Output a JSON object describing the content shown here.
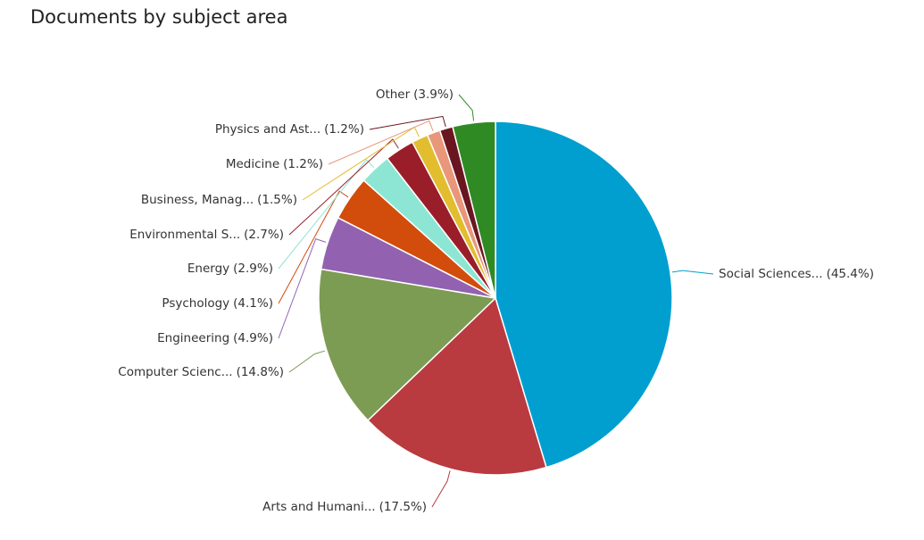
{
  "chart_data": {
    "type": "pie",
    "title": "Documents by subject area",
    "categories": [
      "Social Sciences...",
      "Arts and Humani...",
      "Computer Scienc...",
      "Engineering",
      "Psychology",
      "Energy",
      "Environmental S...",
      "Business, Manag...",
      "Medicine",
      "Physics and Ast...",
      "Other"
    ],
    "values": [
      45.4,
      17.5,
      14.8,
      4.9,
      4.1,
      2.9,
      2.7,
      1.5,
      1.2,
      1.2,
      3.9
    ],
    "value_labels": [
      "(45.4%)",
      "(17.5%)",
      "(14.8%)",
      "(4.9%)",
      "(4.1%)",
      "(2.9%)",
      "(2.7%)",
      "(1.5%)",
      "(1.2%)",
      "(1.2%)",
      "(3.9%)"
    ],
    "colors": [
      "#009fd0",
      "#b93a3f",
      "#7c9c53",
      "#9262b1",
      "#d24c0b",
      "#8de6d3",
      "#9a1e2a",
      "#e2bd2e",
      "#e8977b",
      "#6a1620",
      "#2f8a24"
    ]
  }
}
